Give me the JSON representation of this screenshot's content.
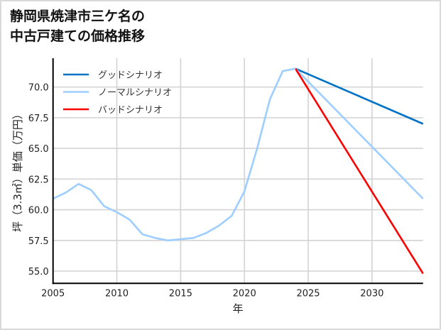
{
  "title": {
    "line1": "静岡県焼津市三ケ名の",
    "line2": "中古戸建ての価格推移"
  },
  "colors": {
    "good": "#0072C6",
    "normal": "#9DCEFF",
    "bad": "#FF0000",
    "grid": "#D3D3D3",
    "axis": "#000000",
    "frame": "#D9D9D9"
  },
  "chart_data": {
    "type": "line",
    "title": "静岡県焼津市三ケ名の中古戸建ての価格推移",
    "xlabel": "年",
    "ylabel": "坪（3.3㎡）単価（万円）",
    "xlim": [
      2005,
      2034
    ],
    "ylim": [
      54.0,
      72.35
    ],
    "grid": true,
    "legend_position": "upper left",
    "x_ticks": [
      2005,
      2010,
      2015,
      2020,
      2025,
      2030
    ],
    "x_tick_labels": [
      "2005",
      "2010",
      "2015",
      "2020",
      "2025",
      "2030"
    ],
    "y_ticks": [
      55.0,
      57.5,
      60.0,
      62.5,
      65.0,
      67.5,
      70.0
    ],
    "y_tick_labels": [
      "55.0",
      "57.5",
      "60.0",
      "62.5",
      "65.0",
      "67.5",
      "70.0"
    ],
    "historical": {
      "name": "ノーマルシナリオ",
      "x": [
        2005,
        2006,
        2007,
        2008,
        2009,
        2010,
        2011,
        2012,
        2013,
        2014,
        2015,
        2016,
        2017,
        2018,
        2019,
        2020,
        2021,
        2022,
        2023,
        2024
      ],
      "y": [
        60.9,
        61.4,
        62.1,
        61.6,
        60.3,
        59.8,
        59.2,
        58.0,
        57.7,
        57.5,
        57.6,
        57.7,
        58.1,
        58.7,
        59.5,
        61.5,
        65.0,
        69.0,
        71.3,
        71.5
      ]
    },
    "series": [
      {
        "name": "グッドシナリオ",
        "color": "#0072C6",
        "x": [
          2024,
          2034
        ],
        "y": [
          71.5,
          67.0
        ]
      },
      {
        "name": "ノーマルシナリオ",
        "color": "#9DCEFF",
        "x": [
          2024,
          2034
        ],
        "y": [
          71.5,
          60.9
        ]
      },
      {
        "name": "バッドシナリオ",
        "color": "#FF0000",
        "x": [
          2024,
          2034
        ],
        "y": [
          71.5,
          54.8
        ]
      }
    ]
  },
  "legend": [
    {
      "label": "グッドシナリオ",
      "color": "#0072C6"
    },
    {
      "label": "ノーマルシナリオ",
      "color": "#9DCEFF"
    },
    {
      "label": "バッドシナリオ",
      "color": "#FF0000"
    }
  ]
}
